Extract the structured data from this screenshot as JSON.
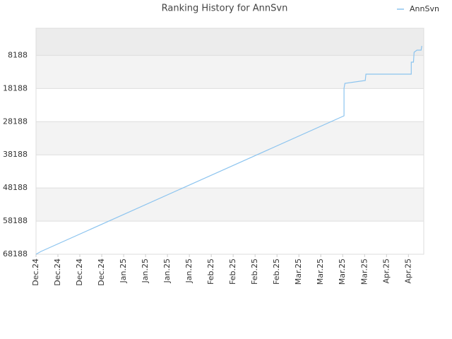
{
  "chart_data": {
    "type": "line",
    "title": "Ranking History for AnnSvn",
    "series": [
      {
        "name": "AnnSvn",
        "color": "#8cc4ef",
        "x": [
          0,
          0.23,
          14.06,
          14.06,
          14.1,
          15.03,
          15.06,
          17.13,
          17.13,
          17.23,
          17.26,
          17.39,
          17.58,
          17.61
        ],
        "values": [
          68188,
          67336,
          26423,
          18112,
          16620,
          15768,
          13850,
          13850,
          10228,
          10228,
          7245,
          6606,
          6606,
          5327
        ]
      }
    ],
    "ylim": [
      68188,
      0
    ],
    "yticks": [
      8188,
      18188,
      28188,
      38188,
      48188,
      58188,
      68188
    ],
    "xlim": [
      0,
      17.7
    ],
    "xticks": [
      {
        "value": 0,
        "label": "Dec.24"
      },
      {
        "value": 1,
        "label": "Dec.24"
      },
      {
        "value": 2,
        "label": "Dec.24"
      },
      {
        "value": 3,
        "label": "Dec.24"
      },
      {
        "value": 4,
        "label": "Jan.25"
      },
      {
        "value": 5,
        "label": "Jan.25"
      },
      {
        "value": 6,
        "label": "Jan.25"
      },
      {
        "value": 7,
        "label": "Jan.25"
      },
      {
        "value": 8,
        "label": "Feb.25"
      },
      {
        "value": 9,
        "label": "Feb.25"
      },
      {
        "value": 10,
        "label": "Feb.25"
      },
      {
        "value": 11,
        "label": "Feb.25"
      },
      {
        "value": 12,
        "label": "Mar.25"
      },
      {
        "value": 13,
        "label": "Mar.25"
      },
      {
        "value": 14,
        "label": "Mar.25"
      },
      {
        "value": 15,
        "label": "Mar.25"
      },
      {
        "value": 16,
        "label": "Apr.25"
      },
      {
        "value": 17,
        "label": "Apr.25"
      }
    ],
    "grid": true,
    "legend": "top-right"
  }
}
